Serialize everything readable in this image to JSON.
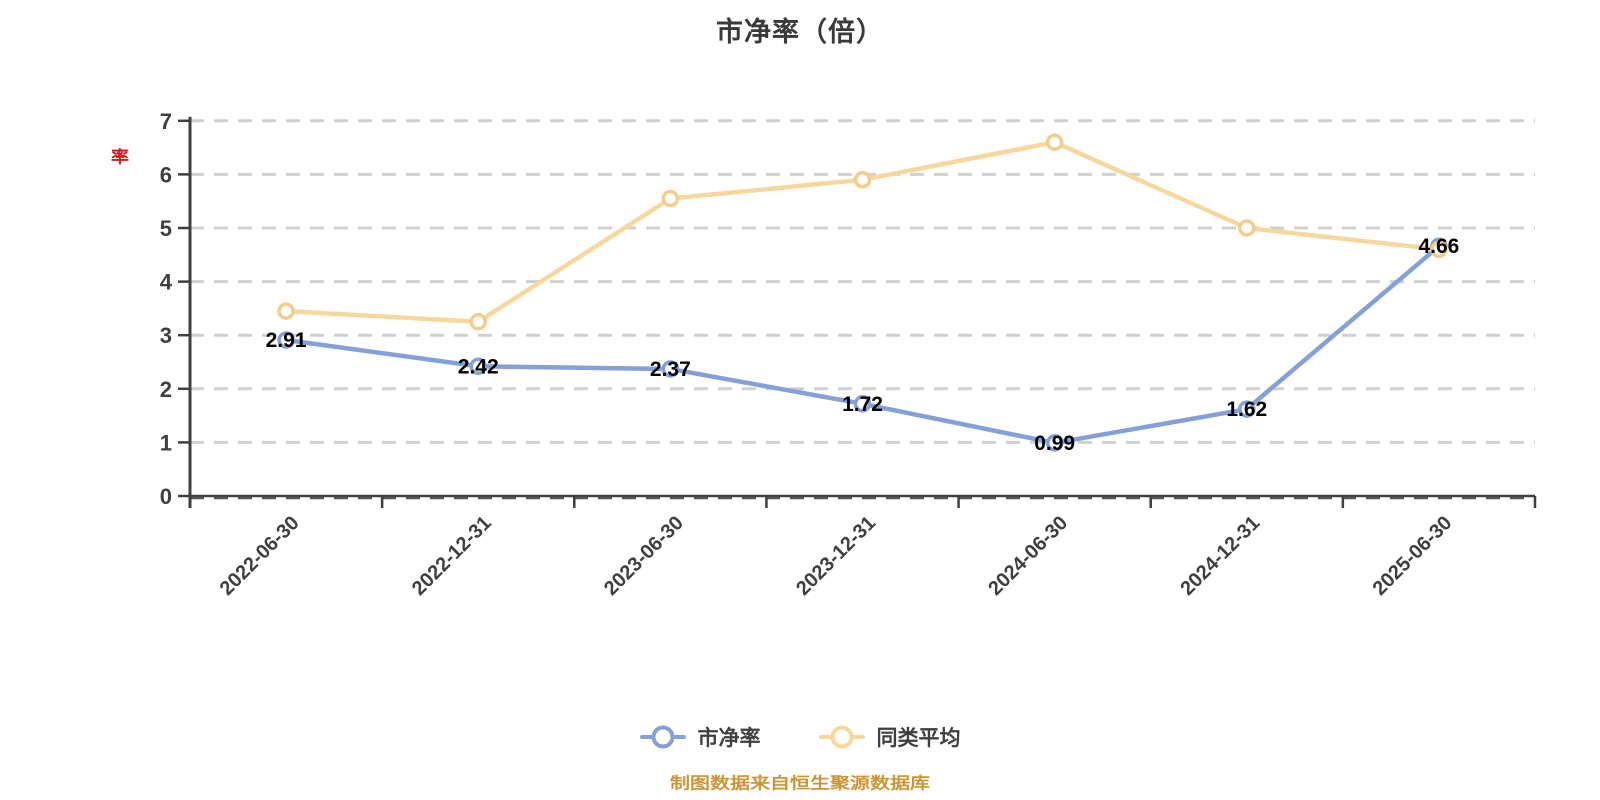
{
  "title": "市净率（倍）",
  "y_axis_name": "率",
  "footnote": "制图数据来自恒生聚源数据库",
  "colors": {
    "axis": "#3f3f3f",
    "grid": "#d0d0d0",
    "zero_line_dash": "#555555",
    "tick_label": "#3f3f3f",
    "value_label": "#000000",
    "marker_fill": "#ffffff",
    "title": "#3a3a3a",
    "footnote": "#cb9434",
    "y_axis_name_red": "#e01212",
    "series_blue": "#84a0d6",
    "series_yellow": "#f6d89e",
    "marker_stroke_yellow": "#f2ce8c"
  },
  "legend": {
    "items": [
      {
        "label": "市净率",
        "color": "#84a0d6"
      },
      {
        "label": "同类平均",
        "color": "#f6d89e"
      }
    ]
  },
  "chart_data": {
    "type": "line",
    "title": "市净率（倍）",
    "xlabel": "",
    "ylabel": "率",
    "categories": [
      "2022-06-30",
      "2022-12-31",
      "2023-06-30",
      "2023-12-31",
      "2024-06-30",
      "2024-12-31",
      "2025-06-30"
    ],
    "series": [
      {
        "name": "市净率",
        "color": "#84a0d6",
        "marker_stroke": "#84a0d6",
        "values": [
          2.91,
          2.42,
          2.37,
          1.72,
          0.99,
          1.62,
          4.66
        ],
        "labels_shown": true
      },
      {
        "name": "同类平均",
        "color": "#f6d89e",
        "marker_stroke": "#f2ce8c",
        "values": [
          3.45,
          3.25,
          5.55,
          5.9,
          6.6,
          5.0,
          4.6
        ],
        "labels_shown": false
      }
    ],
    "ylim": [
      0,
      7
    ],
    "y_ticks": [
      0,
      1,
      2,
      3,
      4,
      5,
      6,
      7
    ],
    "grid": "horizontal-dashed",
    "x_label_rotation": 45,
    "legend_position": "bottom"
  }
}
